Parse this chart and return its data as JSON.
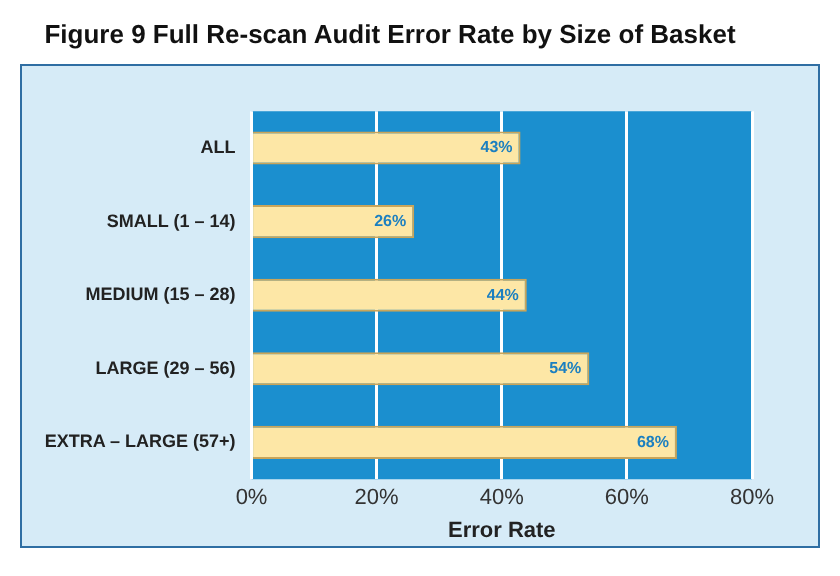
{
  "chart_data": {
    "type": "bar",
    "orientation": "horizontal",
    "title": "Figure 9 Full Re-scan Audit Error Rate by Size of Basket",
    "categories": [
      "ALL",
      "SMALL (1 – 14)",
      "MEDIUM (15 – 28)",
      "LARGE (29 – 56)",
      "EXTRA – LARGE (57+)"
    ],
    "values": [
      43,
      26,
      44,
      54,
      68
    ],
    "value_labels": [
      "43%",
      "26%",
      "44%",
      "54%",
      "68%"
    ],
    "color": "#fde7a6",
    "xlabel": "Error Rate",
    "xlim": [
      0,
      80
    ],
    "xticks": [
      {
        "value": 0,
        "label": "0%"
      },
      {
        "value": 20,
        "label": "20%"
      },
      {
        "value": 40,
        "label": "40%"
      },
      {
        "value": 60,
        "label": "60%"
      },
      {
        "value": 80,
        "label": "80%"
      }
    ],
    "grid": "x"
  }
}
